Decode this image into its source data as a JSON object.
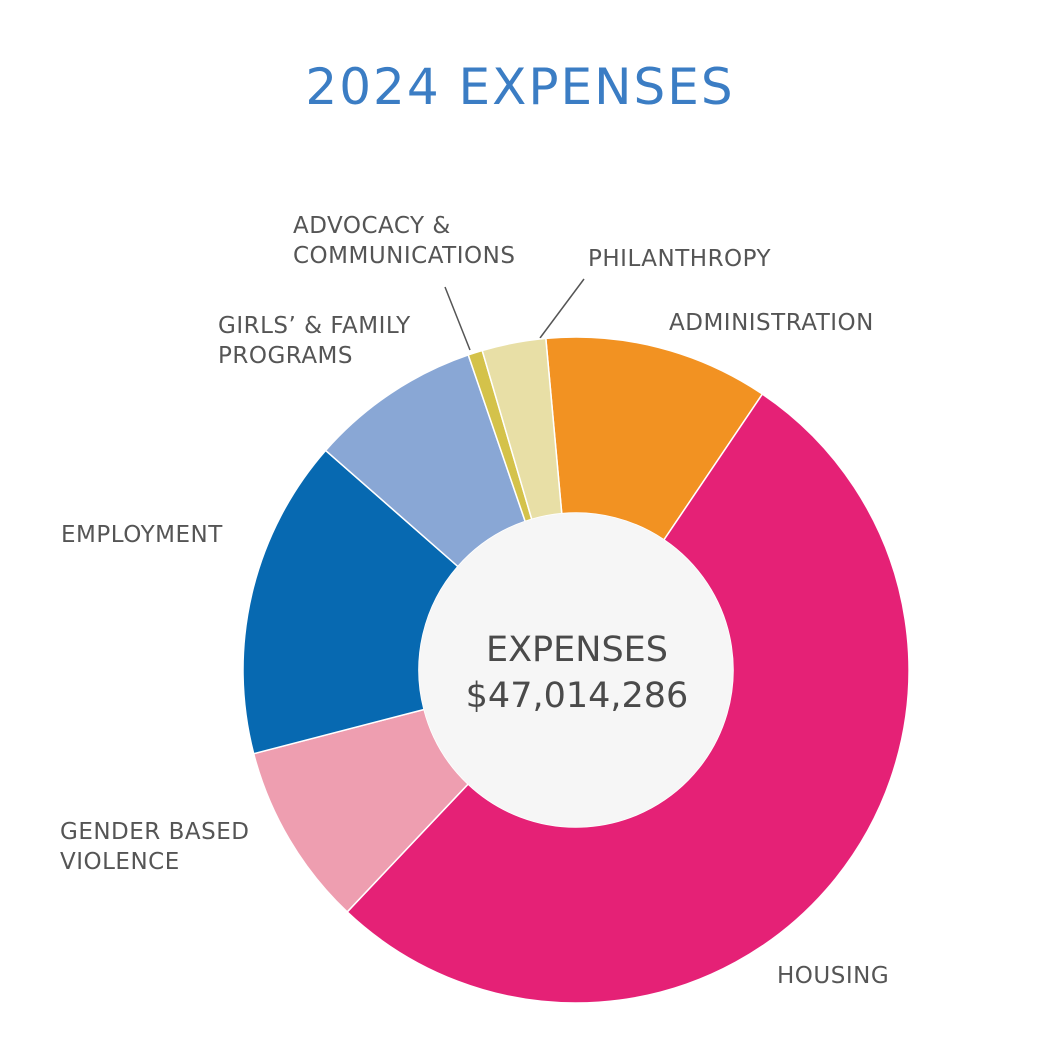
{
  "chart_data": {
    "type": "donut",
    "title": "2024 EXPENSES",
    "center_title": "EXPENSES",
    "total": {
      "value": 47014286,
      "label": "$47,014,286"
    },
    "categories": [
      "ADMINISTRATION",
      "HOUSING",
      "GENDER BASED\nVIOLENCE",
      "EMPLOYMENT",
      "GIRLS’ & FAMILY\nPROGRAMS",
      "ADVOCACY &\nCOMMUNICATIONS",
      "PHILANTHROPY"
    ],
    "values": [
      10.9,
      52.6,
      8.9,
      15.5,
      8.3,
      0.7,
      3.1
    ],
    "colors": [
      "#f29222",
      "#e52176",
      "#ee9eb0",
      "#0769b1",
      "#89a7d5",
      "#d4c24a",
      "#e8dfa6"
    ]
  }
}
